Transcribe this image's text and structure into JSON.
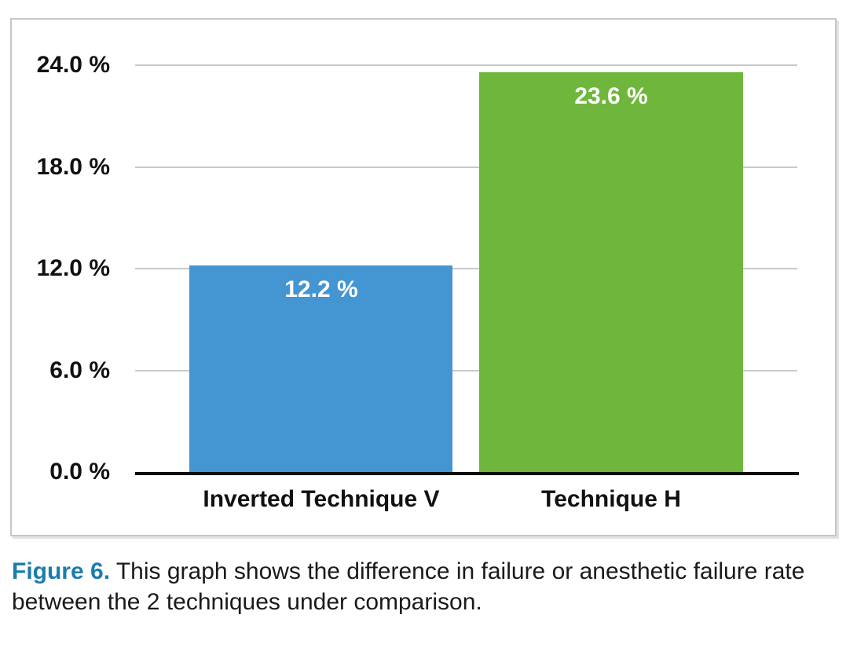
{
  "figure": {
    "caption_label": "Figure 6.",
    "caption_text": " This graph shows the difference in failure or anesthetic failure rate between the 2 techniques under comparison.",
    "caption_label_color": "#1c7cad"
  },
  "chart_data": {
    "type": "bar",
    "title": "",
    "xlabel": "",
    "ylabel": "",
    "categories": [
      "Inverted Technique V",
      "Technique H"
    ],
    "values": [
      12.2,
      23.6
    ],
    "value_labels": [
      "12.2 %",
      "23.6 %"
    ],
    "bar_colors": [
      "#4496d3",
      "#6fb63c"
    ],
    "ylim": [
      0,
      24
    ],
    "yticks": [
      {
        "value": 24,
        "label": "24.0 %"
      },
      {
        "value": 18,
        "label": "18.0 %"
      },
      {
        "value": 12,
        "label": "12.0 %"
      },
      {
        "value": 6,
        "label": "6.0 %"
      },
      {
        "value": 0,
        "label": "0.0 %"
      }
    ],
    "grid": true,
    "legend": "none",
    "gridline_color": "#c9c9c9",
    "axis_color": "#0d0d0d",
    "value_label_color": "#ffffff"
  }
}
